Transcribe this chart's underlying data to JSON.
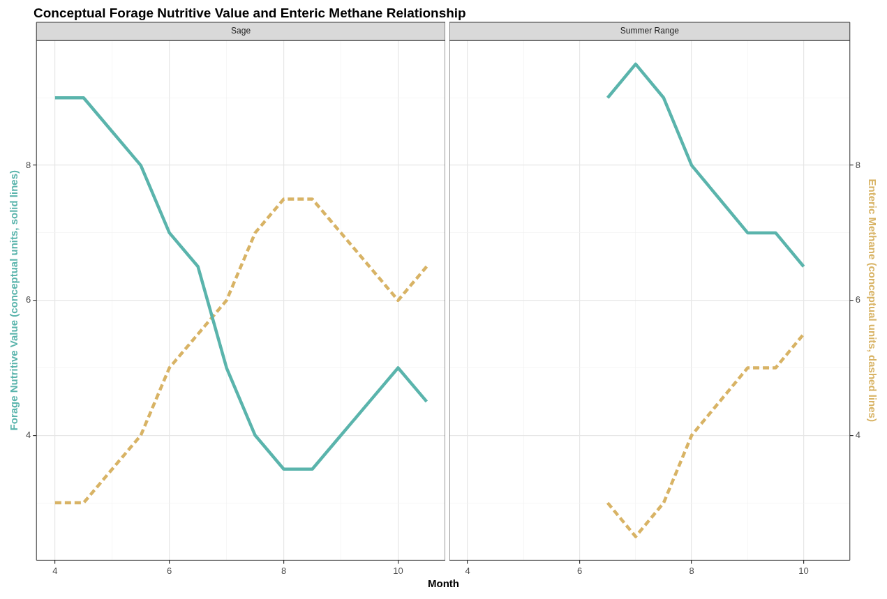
{
  "chart_data": [
    {
      "type": "line",
      "title": "Conceptual Forage Nutritive Value and Enteric Methane Relationship",
      "subtitle": "Sage",
      "xlabel": "Month",
      "ylabel": "Forage Nutritive Value (conceptual units, solid lines)",
      "x": [
        4,
        4.5,
        5,
        5.5,
        6,
        6.5,
        7,
        7.5,
        8,
        8.5,
        9,
        9.5,
        10,
        10.5
      ],
      "series": [
        {
          "color": "#5ab4ac",
          "line_style": "solid",
          "values": [
            9,
            9,
            8.5,
            8,
            7,
            6.5,
            5,
            4,
            3.5,
            3.5,
            4,
            4.5,
            5,
            4.5
          ]
        },
        {
          "color": "#d8b365",
          "line_style": "dashed",
          "values": [
            3,
            3,
            3.5,
            4,
            5,
            5.5,
            6,
            7,
            7.5,
            7.5,
            7,
            6.5,
            6,
            6.5
          ]
        }
      ],
      "xlim": [
        3.675,
        10.825
      ],
      "xticks": [
        4,
        {
          "value": 5,
          "label": null
        },
        6,
        {
          "value": 7,
          "label": null
        },
        8,
        {
          "value": 9,
          "label": null
        },
        10
      ],
      "ylim": [
        2.15,
        9.85
      ],
      "yticks": [
        {
          "value": 3,
          "label": null
        },
        4,
        {
          "value": 5,
          "label": null
        },
        6,
        {
          "value": 7,
          "label": null
        },
        8,
        {
          "value": 9,
          "label": null
        }
      ],
      "grid": true,
      "marker": "none"
    },
    {
      "type": "line",
      "subtitle": "Summer Range",
      "y2label": "Enteric Methane (conceptual units, dashed lines)",
      "x": [
        6.5,
        7,
        7.5,
        8,
        8.5,
        9,
        9.5,
        10
      ],
      "series": [
        {
          "color": "#5ab4ac",
          "line_style": "solid",
          "axis": "y2",
          "values": [
            9,
            9.5,
            9,
            8,
            7.5,
            7,
            7,
            6.5
          ]
        },
        {
          "color": "#d8b365",
          "line_style": "dashed",
          "axis": "y2",
          "values": [
            3,
            2.5,
            3,
            4,
            4.5,
            5,
            5,
            5.5
          ]
        }
      ],
      "xlim": [
        3.675,
        10.825
      ],
      "xticks": [
        4,
        {
          "value": 5,
          "label": null
        },
        6,
        {
          "value": 7,
          "label": null
        },
        8,
        {
          "value": 9,
          "label": null
        },
        10
      ],
      "y2lim": [
        2.15,
        9.85
      ],
      "y2ticks": [
        {
          "value": 3,
          "label": null
        },
        4,
        {
          "value": 5,
          "label": null
        },
        6,
        {
          "value": 7,
          "label": null
        },
        8,
        {
          "value": 9,
          "label": null
        }
      ],
      "grid": true,
      "marker": "none"
    }
  ]
}
